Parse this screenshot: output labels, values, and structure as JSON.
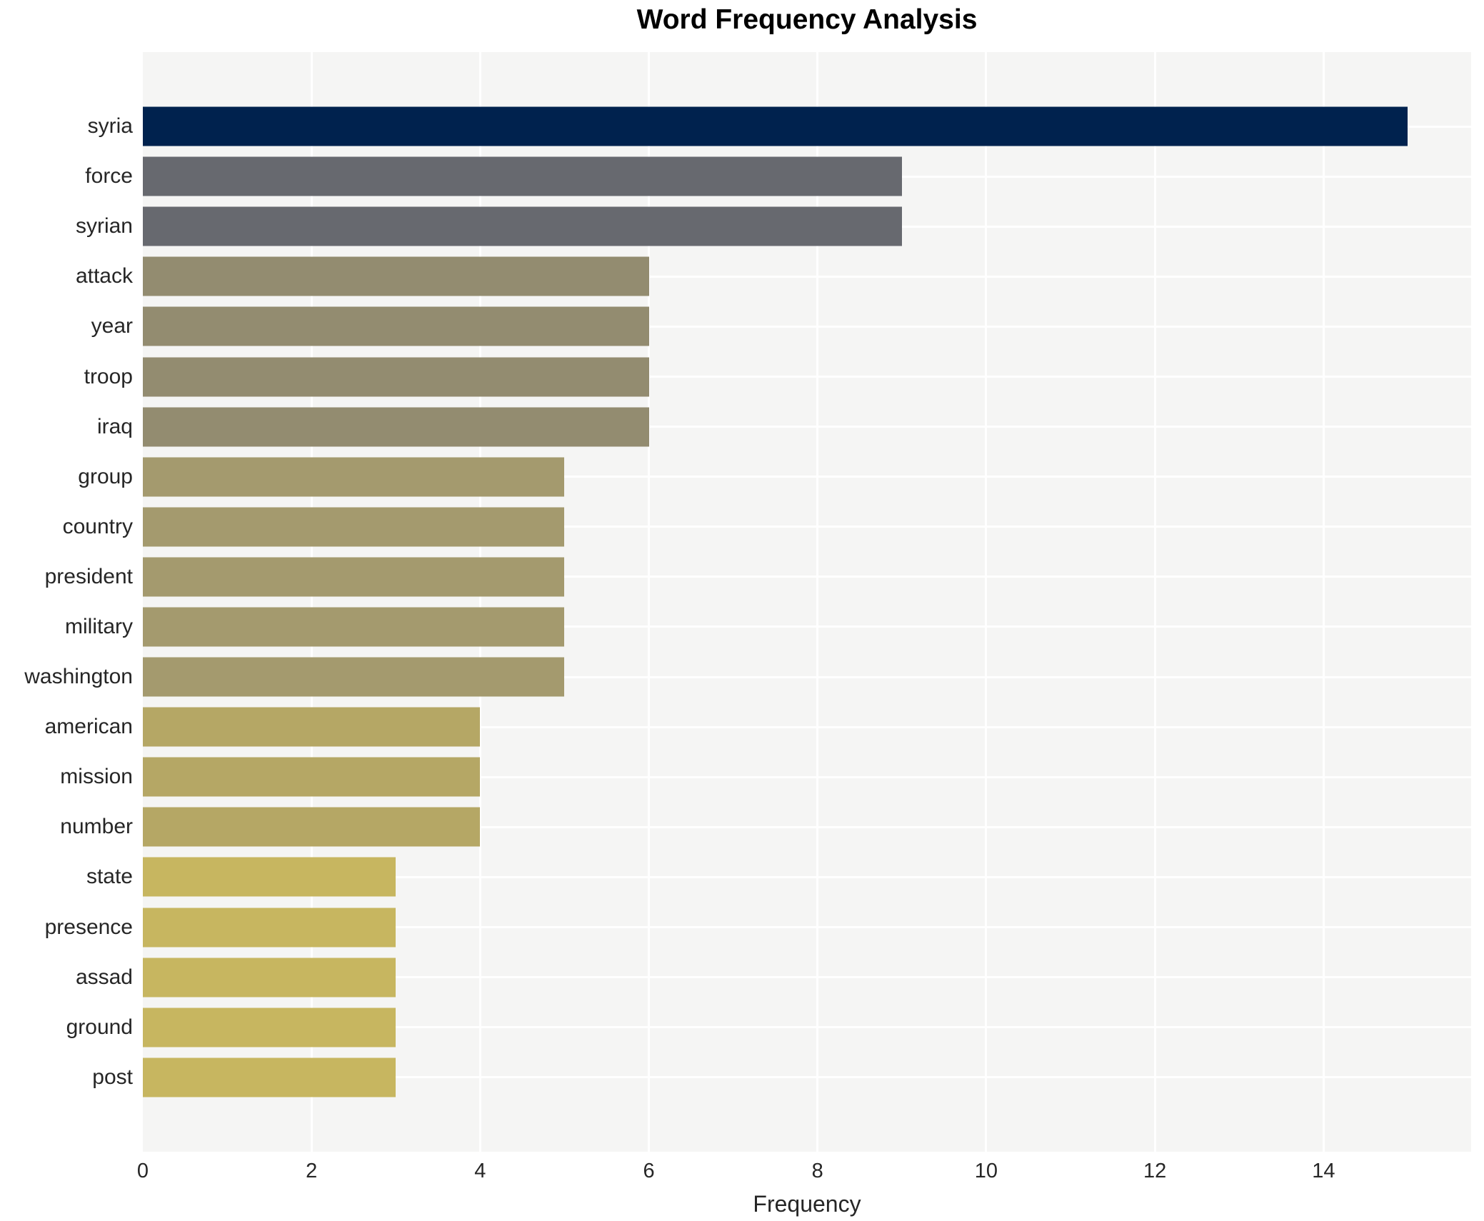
{
  "title": "Word Frequency Analysis",
  "xlabel": "Frequency",
  "chart_data": {
    "type": "bar",
    "orientation": "horizontal",
    "title": "Word Frequency Analysis",
    "xlabel": "Frequency",
    "ylabel": "",
    "categories": [
      "syria",
      "force",
      "syrian",
      "attack",
      "year",
      "troop",
      "iraq",
      "group",
      "country",
      "president",
      "military",
      "washington",
      "american",
      "mission",
      "number",
      "state",
      "presence",
      "assad",
      "ground",
      "post"
    ],
    "values": [
      15,
      9,
      9,
      6,
      6,
      6,
      6,
      5,
      5,
      5,
      5,
      5,
      4,
      4,
      4,
      3,
      3,
      3,
      3,
      3
    ],
    "bar_colors": [
      "#00224e",
      "#67696f",
      "#67696f",
      "#938c70",
      "#938c70",
      "#938c70",
      "#938c70",
      "#a49a6e",
      "#a49a6e",
      "#a49a6e",
      "#a49a6e",
      "#a49a6e",
      "#b5a765",
      "#b5a765",
      "#b5a765",
      "#c7b660",
      "#c7b660",
      "#c7b660",
      "#c7b660",
      "#c7b660"
    ],
    "xlim": [
      0,
      15.75
    ],
    "xticks": [
      0,
      2,
      4,
      6,
      8,
      10,
      12,
      14
    ],
    "grid": true,
    "legend": "none",
    "plot_background": "#f5f5f4",
    "gridline_color": "#ffffff",
    "text_color": "#262626"
  }
}
